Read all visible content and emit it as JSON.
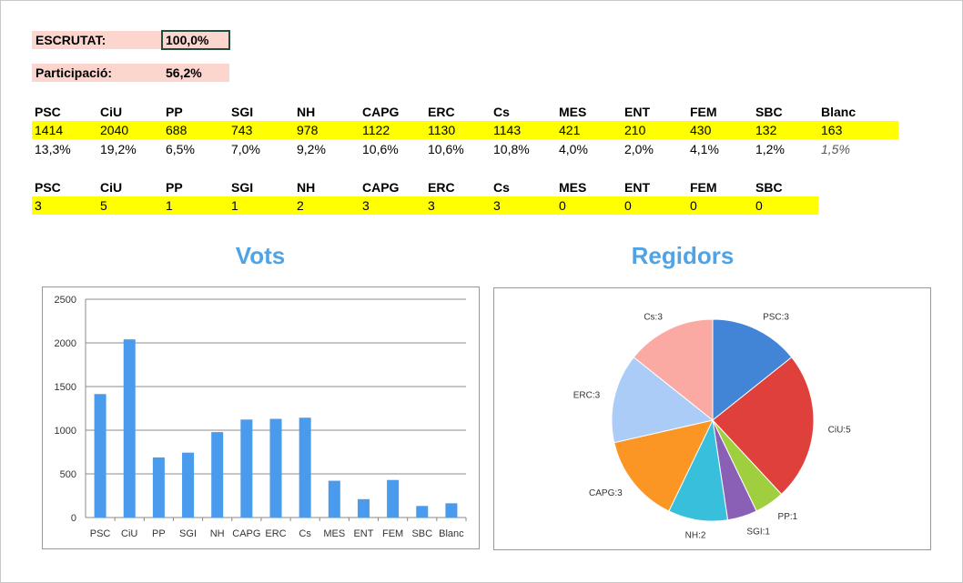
{
  "summary": {
    "escrutat_label": "ESCRUTAT:",
    "escrutat_value": "100,0%",
    "participacio_label": "Participació:",
    "participacio_value": "56,2%"
  },
  "votes_table": {
    "headers": [
      "PSC",
      "CiU",
      "PP",
      "SGI",
      "NH",
      "CAPG",
      "ERC",
      "Cs",
      "MES",
      "ENT",
      "FEM",
      "SBC",
      "Blanc"
    ],
    "votes": [
      "1414",
      "2040",
      "688",
      "743",
      "978",
      "1122",
      "1130",
      "1143",
      "421",
      "210",
      "430",
      "132",
      "163"
    ],
    "percents": [
      "13,3%",
      "19,2%",
      "6,5%",
      "7,0%",
      "9,2%",
      "10,6%",
      "10,6%",
      "10,8%",
      "4,0%",
      "2,0%",
      "4,1%",
      "1,2%",
      "1,5%"
    ]
  },
  "seats_table": {
    "headers": [
      "PSC",
      "CiU",
      "PP",
      "SGI",
      "NH",
      "CAPG",
      "ERC",
      "Cs",
      "MES",
      "ENT",
      "FEM",
      "SBC"
    ],
    "seats": [
      "3",
      "5",
      "1",
      "1",
      "2",
      "3",
      "3",
      "3",
      "0",
      "0",
      "0",
      "0"
    ]
  },
  "chart_data": [
    {
      "type": "bar",
      "title": "Vots",
      "categories": [
        "PSC",
        "CiU",
        "PP",
        "SGI",
        "NH",
        "CAPG",
        "ERC",
        "Cs",
        "MES",
        "ENT",
        "FEM",
        "SBC",
        "Blanc"
      ],
      "values": [
        1414,
        2040,
        688,
        743,
        978,
        1122,
        1130,
        1143,
        421,
        210,
        430,
        132,
        163
      ],
      "ylim": [
        0,
        2500
      ],
      "yticks": [
        0,
        500,
        1000,
        1500,
        2000,
        2500
      ],
      "grid": true,
      "color": "#4a9aed"
    },
    {
      "type": "pie",
      "title": "Regidors",
      "slices": [
        {
          "label": "PSC:3",
          "value": 3,
          "color": "#4285d6"
        },
        {
          "label": "CiU:5",
          "value": 5,
          "color": "#e0403c"
        },
        {
          "label": "PP:1",
          "value": 1,
          "color": "#9fcf3f"
        },
        {
          "label": "SGI:1",
          "value": 1,
          "color": "#8a5fb6"
        },
        {
          "label": "NH:2",
          "value": 2,
          "color": "#37bfdc"
        },
        {
          "label": "CAPG:3",
          "value": 3,
          "color": "#fb9524"
        },
        {
          "label": "ERC:3",
          "value": 3,
          "color": "#acccf8"
        },
        {
          "label": "Cs:3",
          "value": 3,
          "color": "#fba9a3"
        }
      ]
    }
  ]
}
